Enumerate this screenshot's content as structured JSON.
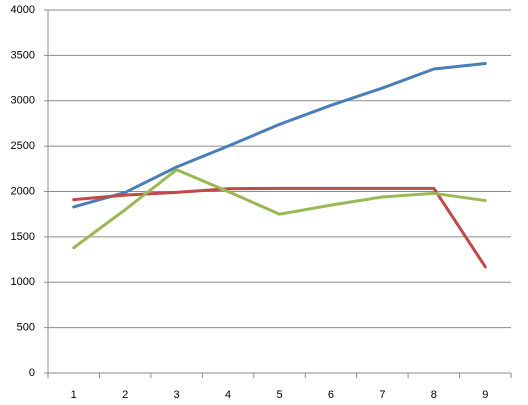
{
  "chart_data": {
    "type": "line",
    "categories": [
      "1",
      "2",
      "3",
      "4",
      "5",
      "6",
      "7",
      "8",
      "9"
    ],
    "series": [
      {
        "color": "#4a7ebb",
        "values": [
          1830,
          1990,
          2270,
          2500,
          2740,
          2950,
          3140,
          3350,
          3410
        ]
      },
      {
        "color": "#be4b48",
        "values": [
          1910,
          1960,
          1990,
          2030,
          2035,
          2035,
          2035,
          2035,
          1170
        ]
      },
      {
        "color": "#98b954",
        "values": [
          1380,
          1800,
          2240,
          2000,
          1750,
          1850,
          1940,
          1980,
          1900
        ]
      }
    ],
    "ylim": [
      0,
      4000
    ],
    "yticks": [
      0,
      500,
      1000,
      1500,
      2000,
      2500,
      3000,
      3500,
      4000
    ],
    "grid": true
  }
}
